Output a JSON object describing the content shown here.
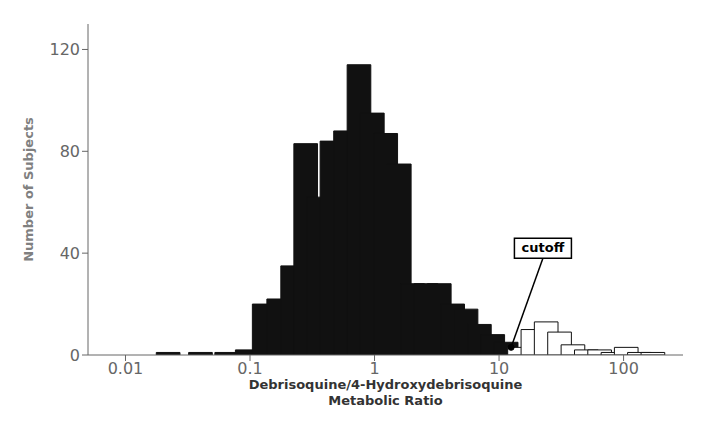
{
  "chart_data": {
    "type": "bar",
    "log": "x",
    "xlabel": "Debrisoquine/4-Hydroxydebrisoquine\nMetabolic Ratio",
    "ylabel": "Number of Subjects",
    "xlim": [
      0.005,
      300
    ],
    "xticks": [
      0.01,
      0.1,
      1,
      10,
      100
    ],
    "ylim": [
      0,
      130
    ],
    "yticks": [
      0,
      40,
      80,
      120
    ],
    "grid": false,
    "series": [
      {
        "color": "#111111",
        "x": [
          0.022,
          0.04,
          0.065,
          0.095,
          0.13,
          0.17,
          0.22,
          0.28,
          0.355,
          0.455,
          0.585,
          0.75,
          0.96,
          1.23,
          1.58,
          2.02,
          2.59,
          3.31,
          4.24,
          5.43,
          6.95,
          8.9,
          11.4
        ],
        "values": [
          1,
          1,
          1,
          2,
          20,
          22,
          35,
          83,
          62,
          84,
          88,
          114,
          95,
          87,
          75,
          28,
          28,
          28,
          20,
          18,
          12,
          8,
          5
        ]
      },
      {
        "color": "#ffffff",
        "x": [
          14.6,
          18.7,
          23.9,
          30.6,
          39.2,
          50.2,
          64.2,
          82.2,
          105.0,
          134.0,
          172.0
        ],
        "values": [
          3,
          10,
          13,
          9,
          4,
          2,
          2,
          1,
          3,
          1,
          1
        ]
      }
    ],
    "annotations": [
      {
        "text": "cutoff",
        "x": 12.5,
        "y": 3,
        "text_x": 22.5,
        "text_y": 38
      }
    ]
  }
}
